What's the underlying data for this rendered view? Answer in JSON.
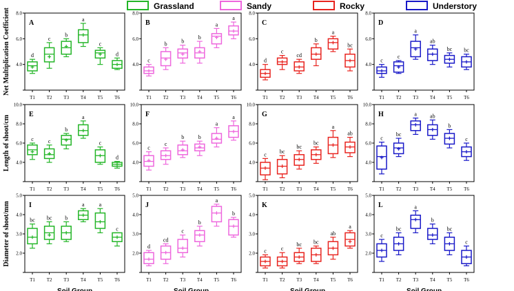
{
  "legend": [
    {
      "name": "Grassland",
      "color": "#22b526"
    },
    {
      "name": "Sandy",
      "color": "#ee66dd"
    },
    {
      "name": "Rocky",
      "color": "#e8231e"
    },
    {
      "name": "Understory",
      "color": "#1818c8"
    }
  ],
  "xlabel": "Soil Group",
  "chart_data": {
    "type": "box",
    "categories": [
      "T1",
      "T2",
      "T3",
      "T4",
      "T5",
      "T6"
    ],
    "rows": [
      {
        "ylabel": "Net Multiplication Coefficient",
        "ylim": [
          2.0,
          8.0
        ],
        "yticks": [
          "",
          "4.0",
          "6.0",
          "8.0"
        ],
        "panels": [
          {
            "label": "A",
            "color": "#22b526",
            "boxes": [
              {
                "min": 3.3,
                "q1": 3.5,
                "med": 3.9,
                "q3": 4.2,
                "max": 4.4,
                "mean": 3.8,
                "sig": "d"
              },
              {
                "min": 3.7,
                "q1": 4.2,
                "med": 4.8,
                "q3": 5.3,
                "max": 5.7,
                "mean": 4.6,
                "sig": "c"
              },
              {
                "min": 4.6,
                "q1": 4.8,
                "med": 5.3,
                "q3": 5.8,
                "max": 6.0,
                "mean": 5.4,
                "sig": "b"
              },
              {
                "min": 5.4,
                "q1": 5.7,
                "med": 6.3,
                "q3": 6.7,
                "max": 7.2,
                "mean": 6.3,
                "sig": "a"
              },
              {
                "min": 4.0,
                "q1": 4.5,
                "med": 4.9,
                "q3": 5.1,
                "max": 5.3,
                "mean": 4.8,
                "sig": "c"
              },
              {
                "min": 3.6,
                "q1": 3.7,
                "med": 4.0,
                "q3": 4.3,
                "max": 4.5,
                "mean": 4.0,
                "sig": "d"
              }
            ]
          },
          {
            "label": "B",
            "color": "#ee66dd",
            "boxes": [
              {
                "min": 3.1,
                "q1": 3.3,
                "med": 3.5,
                "q3": 3.8,
                "max": 4.0,
                "mean": 3.5,
                "sig": "c"
              },
              {
                "min": 3.6,
                "q1": 3.9,
                "med": 4.5,
                "q3": 5.0,
                "max": 5.3,
                "mean": 4.4,
                "sig": "b"
              },
              {
                "min": 4.1,
                "q1": 4.5,
                "med": 4.9,
                "q3": 5.2,
                "max": 5.5,
                "mean": 4.8,
                "sig": "b"
              },
              {
                "min": 4.1,
                "q1": 4.5,
                "med": 4.9,
                "q3": 5.3,
                "max": 5.8,
                "mean": 5.0,
                "sig": "b"
              },
              {
                "min": 5.3,
                "q1": 5.6,
                "med": 6.2,
                "q3": 6.4,
                "max": 6.8,
                "mean": 6.1,
                "sig": "a"
              },
              {
                "min": 6.0,
                "q1": 6.3,
                "med": 6.6,
                "q3": 7.0,
                "max": 7.3,
                "mean": 6.6,
                "sig": "a"
              }
            ]
          },
          {
            "label": "C",
            "color": "#e8231e",
            "boxes": [
              {
                "min": 2.8,
                "q1": 3.0,
                "med": 3.3,
                "q3": 3.6,
                "max": 4.0,
                "mean": 3.3,
                "sig": "d"
              },
              {
                "min": 3.6,
                "q1": 4.0,
                "med": 4.2,
                "q3": 4.5,
                "max": 4.7,
                "mean": 4.2,
                "sig": "c"
              },
              {
                "min": 3.3,
                "q1": 3.5,
                "med": 3.8,
                "q3": 4.2,
                "max": 4.4,
                "mean": 3.8,
                "sig": "cd"
              },
              {
                "min": 3.9,
                "q1": 4.4,
                "med": 4.8,
                "q3": 5.3,
                "max": 5.6,
                "mean": 4.8,
                "sig": "b"
              },
              {
                "min": 5.0,
                "q1": 5.2,
                "med": 5.7,
                "q3": 6.0,
                "max": 6.2,
                "mean": 5.7,
                "sig": "a"
              },
              {
                "min": 3.5,
                "q1": 3.8,
                "med": 4.3,
                "q3": 4.8,
                "max": 5.2,
                "mean": 4.3,
                "sig": "bc"
              }
            ]
          },
          {
            "label": "D",
            "color": "#1818c8",
            "boxes": [
              {
                "min": 3.0,
                "q1": 3.3,
                "med": 3.5,
                "q3": 3.8,
                "max": 4.0,
                "mean": 3.5,
                "sig": "c"
              },
              {
                "min": 3.3,
                "q1": 3.4,
                "med": 3.9,
                "q3": 4.2,
                "max": 4.3,
                "mean": 3.8,
                "sig": "c"
              },
              {
                "min": 4.4,
                "q1": 4.6,
                "med": 5.3,
                "q3": 5.8,
                "max": 6.3,
                "mean": 5.2,
                "sig": "a"
              },
              {
                "min": 4.0,
                "q1": 4.3,
                "med": 4.8,
                "q3": 5.2,
                "max": 5.5,
                "mean": 4.8,
                "sig": "ab"
              },
              {
                "min": 3.8,
                "q1": 4.1,
                "med": 4.4,
                "q3": 4.7,
                "max": 4.9,
                "mean": 4.4,
                "sig": "bc"
              },
              {
                "min": 3.6,
                "q1": 3.8,
                "med": 4.2,
                "q3": 4.6,
                "max": 4.8,
                "mean": 4.2,
                "sig": "bc"
              }
            ]
          }
        ]
      },
      {
        "ylabel": "Length of shoot/cm",
        "ylim": [
          2.0,
          10.0
        ],
        "yticks": [
          "",
          "4.0",
          "6.0",
          "8.0",
          "10.0"
        ],
        "panels": [
          {
            "label": "E",
            "color": "#22b526",
            "boxes": [
              {
                "min": 4.3,
                "q1": 4.8,
                "med": 5.3,
                "q3": 5.8,
                "max": 6.0,
                "mean": 5.1,
                "sig": "c"
              },
              {
                "min": 4.0,
                "q1": 4.4,
                "med": 4.8,
                "q3": 5.4,
                "max": 5.8,
                "mean": 4.9,
                "sig": "c"
              },
              {
                "min": 5.4,
                "q1": 5.8,
                "med": 6.4,
                "q3": 6.8,
                "max": 7.0,
                "mean": 6.3,
                "sig": "b"
              },
              {
                "min": 6.5,
                "q1": 6.8,
                "med": 7.3,
                "q3": 7.9,
                "max": 8.3,
                "mean": 7.3,
                "sig": "a"
              },
              {
                "min": 3.8,
                "q1": 4.0,
                "med": 4.7,
                "q3": 5.3,
                "max": 5.6,
                "mean": 4.7,
                "sig": "c"
              },
              {
                "min": 3.4,
                "q1": 3.6,
                "med": 3.8,
                "q3": 4.0,
                "max": 4.1,
                "mean": 3.8,
                "sig": "d"
              }
            ]
          },
          {
            "label": "F",
            "color": "#ee66dd",
            "boxes": [
              {
                "min": 3.2,
                "q1": 3.6,
                "med": 4.1,
                "q3": 4.7,
                "max": 5.1,
                "mean": 4.2,
                "sig": "c"
              },
              {
                "min": 3.8,
                "q1": 4.3,
                "med": 4.7,
                "q3": 5.2,
                "max": 5.5,
                "mean": 4.7,
                "sig": "c"
              },
              {
                "min": 4.5,
                "q1": 4.8,
                "med": 5.2,
                "q3": 5.8,
                "max": 6.2,
                "mean": 5.3,
                "sig": "b"
              },
              {
                "min": 4.7,
                "q1": 5.2,
                "med": 5.5,
                "q3": 5.9,
                "max": 6.2,
                "mean": 5.6,
                "sig": "b"
              },
              {
                "min": 5.6,
                "q1": 6.0,
                "med": 6.4,
                "q3": 7.0,
                "max": 7.6,
                "mean": 6.5,
                "sig": "a"
              },
              {
                "min": 6.3,
                "q1": 6.6,
                "med": 7.2,
                "q3": 7.8,
                "max": 8.3,
                "mean": 7.2,
                "sig": "a"
              }
            ]
          },
          {
            "label": "G",
            "color": "#e8231e",
            "boxes": [
              {
                "min": 2.2,
                "q1": 2.7,
                "med": 3.4,
                "q3": 4.0,
                "max": 4.4,
                "mean": 3.4,
                "sig": "c"
              },
              {
                "min": 2.4,
                "q1": 2.8,
                "med": 3.6,
                "q3": 4.3,
                "max": 4.7,
                "mean": 3.6,
                "sig": "bc"
              },
              {
                "min": 3.3,
                "q1": 3.7,
                "med": 4.3,
                "q3": 4.8,
                "max": 5.2,
                "mean": 4.3,
                "sig": "bc"
              },
              {
                "min": 3.9,
                "q1": 4.3,
                "med": 4.8,
                "q3": 5.3,
                "max": 5.6,
                "mean": 4.8,
                "sig": "bc"
              },
              {
                "min": 4.5,
                "q1": 4.9,
                "med": 5.8,
                "q3": 6.6,
                "max": 7.3,
                "mean": 5.8,
                "sig": "a"
              },
              {
                "min": 4.6,
                "q1": 5.0,
                "med": 5.6,
                "q3": 6.1,
                "max": 6.6,
                "mean": 5.6,
                "sig": "ab"
              }
            ]
          },
          {
            "label": "H",
            "color": "#1818c8",
            "boxes": [
              {
                "min": 2.8,
                "q1": 3.3,
                "med": 4.6,
                "q3": 5.7,
                "max": 6.1,
                "mean": 4.5,
                "sig": "c"
              },
              {
                "min": 4.6,
                "q1": 4.9,
                "med": 5.5,
                "q3": 6.0,
                "max": 6.5,
                "mean": 5.4,
                "sig": "bc"
              },
              {
                "min": 6.9,
                "q1": 7.3,
                "med": 7.9,
                "q3": 8.3,
                "max": 8.6,
                "mean": 7.9,
                "sig": "a"
              },
              {
                "min": 6.4,
                "q1": 6.8,
                "med": 7.4,
                "q3": 7.9,
                "max": 8.4,
                "mean": 7.4,
                "sig": "ab"
              },
              {
                "min": 5.5,
                "q1": 5.9,
                "med": 6.5,
                "q3": 7.0,
                "max": 7.4,
                "mean": 6.5,
                "sig": "b"
              },
              {
                "min": 4.2,
                "q1": 4.6,
                "med": 5.1,
                "q3": 5.6,
                "max": 6.0,
                "mean": 5.1,
                "sig": "c"
              }
            ]
          }
        ]
      },
      {
        "ylabel": "Diameter of shoot/mm",
        "ylim": [
          1.5,
          5.0
        ],
        "yticks": [
          "",
          "2.0",
          "3.0",
          "4.0",
          "5.0"
        ],
        "panels": [
          {
            "label": "I",
            "color": "#22b526",
            "boxes": [
              {
                "min": 2.6,
                "q1": 2.8,
                "med": 3.1,
                "q3": 3.5,
                "max": 3.7,
                "mean": 3.1,
                "sig": "bc"
              },
              {
                "min": 2.8,
                "q1": 3.0,
                "med": 3.3,
                "q3": 3.6,
                "max": 3.8,
                "mean": 3.2,
                "sig": "bc"
              },
              {
                "min": 2.9,
                "q1": 3.0,
                "med": 3.3,
                "q3": 3.6,
                "max": 3.8,
                "mean": 3.3,
                "sig": "b"
              },
              {
                "min": 3.8,
                "q1": 3.9,
                "med": 4.1,
                "q3": 4.3,
                "max": 4.4,
                "mean": 4.1,
                "sig": "a"
              },
              {
                "min": 3.3,
                "q1": 3.5,
                "med": 3.8,
                "q3": 4.2,
                "max": 4.4,
                "mean": 3.8,
                "sig": "a"
              },
              {
                "min": 2.7,
                "q1": 2.9,
                "med": 3.1,
                "q3": 3.3,
                "max": 3.3,
                "mean": 3.1,
                "sig": "c"
              }
            ]
          },
          {
            "label": "J",
            "color": "#ee66dd",
            "boxes": [
              {
                "min": 1.8,
                "q1": 1.9,
                "med": 2.1,
                "q3": 2.4,
                "max": 2.5,
                "mean": 2.1,
                "sig": "d"
              },
              {
                "min": 1.9,
                "q1": 2.1,
                "med": 2.4,
                "q3": 2.7,
                "max": 2.8,
                "mean": 2.4,
                "sig": "cd"
              },
              {
                "min": 2.2,
                "q1": 2.4,
                "med": 2.6,
                "q3": 3.0,
                "max": 3.2,
                "mean": 2.6,
                "sig": "c"
              },
              {
                "min": 2.7,
                "q1": 2.9,
                "med": 3.2,
                "q3": 3.4,
                "max": 3.6,
                "mean": 3.2,
                "sig": "b"
              },
              {
                "min": 3.6,
                "q1": 3.8,
                "med": 4.2,
                "q3": 4.5,
                "max": 4.6,
                "mean": 4.2,
                "sig": "a"
              },
              {
                "min": 3.1,
                "q1": 3.2,
                "med": 3.6,
                "q3": 3.9,
                "max": 4.0,
                "mean": 3.6,
                "sig": "b"
              }
            ]
          },
          {
            "label": "K",
            "color": "#e8231e",
            "boxes": [
              {
                "min": 1.7,
                "q1": 1.8,
                "med": 2.0,
                "q3": 2.2,
                "max": 2.3,
                "mean": 2.0,
                "sig": "c"
              },
              {
                "min": 1.7,
                "q1": 1.8,
                "med": 2.0,
                "q3": 2.2,
                "max": 2.4,
                "mean": 2.0,
                "sig": "c"
              },
              {
                "min": 1.9,
                "q1": 2.0,
                "med": 2.2,
                "q3": 2.4,
                "max": 2.6,
                "mean": 2.2,
                "sig": "bc"
              },
              {
                "min": 1.9,
                "q1": 2.0,
                "med": 2.3,
                "q3": 2.6,
                "max": 2.7,
                "mean": 2.3,
                "sig": "bc"
              },
              {
                "min": 2.1,
                "q1": 2.3,
                "med": 2.6,
                "q3": 2.9,
                "max": 3.1,
                "mean": 2.6,
                "sig": "ab"
              },
              {
                "min": 2.6,
                "q1": 2.7,
                "med": 3.0,
                "q3": 3.3,
                "max": 3.4,
                "mean": 2.9,
                "sig": "a"
              }
            ]
          },
          {
            "label": "L",
            "color": "#1818c8",
            "boxes": [
              {
                "min": 2.0,
                "q1": 2.2,
                "med": 2.5,
                "q3": 2.8,
                "max": 3.0,
                "mean": 2.5,
                "sig": "c"
              },
              {
                "min": 2.3,
                "q1": 2.5,
                "med": 2.8,
                "q3": 3.1,
                "max": 3.3,
                "mean": 2.8,
                "sig": "bc"
              },
              {
                "min": 3.3,
                "q1": 3.5,
                "med": 3.9,
                "q3": 4.1,
                "max": 4.3,
                "mean": 3.9,
                "sig": "a"
              },
              {
                "min": 2.8,
                "q1": 3.0,
                "med": 3.2,
                "q3": 3.5,
                "max": 3.7,
                "mean": 3.2,
                "sig": "b"
              },
              {
                "min": 2.3,
                "q1": 2.5,
                "med": 2.8,
                "q3": 3.1,
                "max": 3.3,
                "mean": 2.8,
                "sig": "bc"
              },
              {
                "min": 1.8,
                "q1": 1.9,
                "med": 2.2,
                "q3": 2.5,
                "max": 2.7,
                "mean": 2.2,
                "sig": "c"
              }
            ]
          }
        ]
      }
    ]
  }
}
